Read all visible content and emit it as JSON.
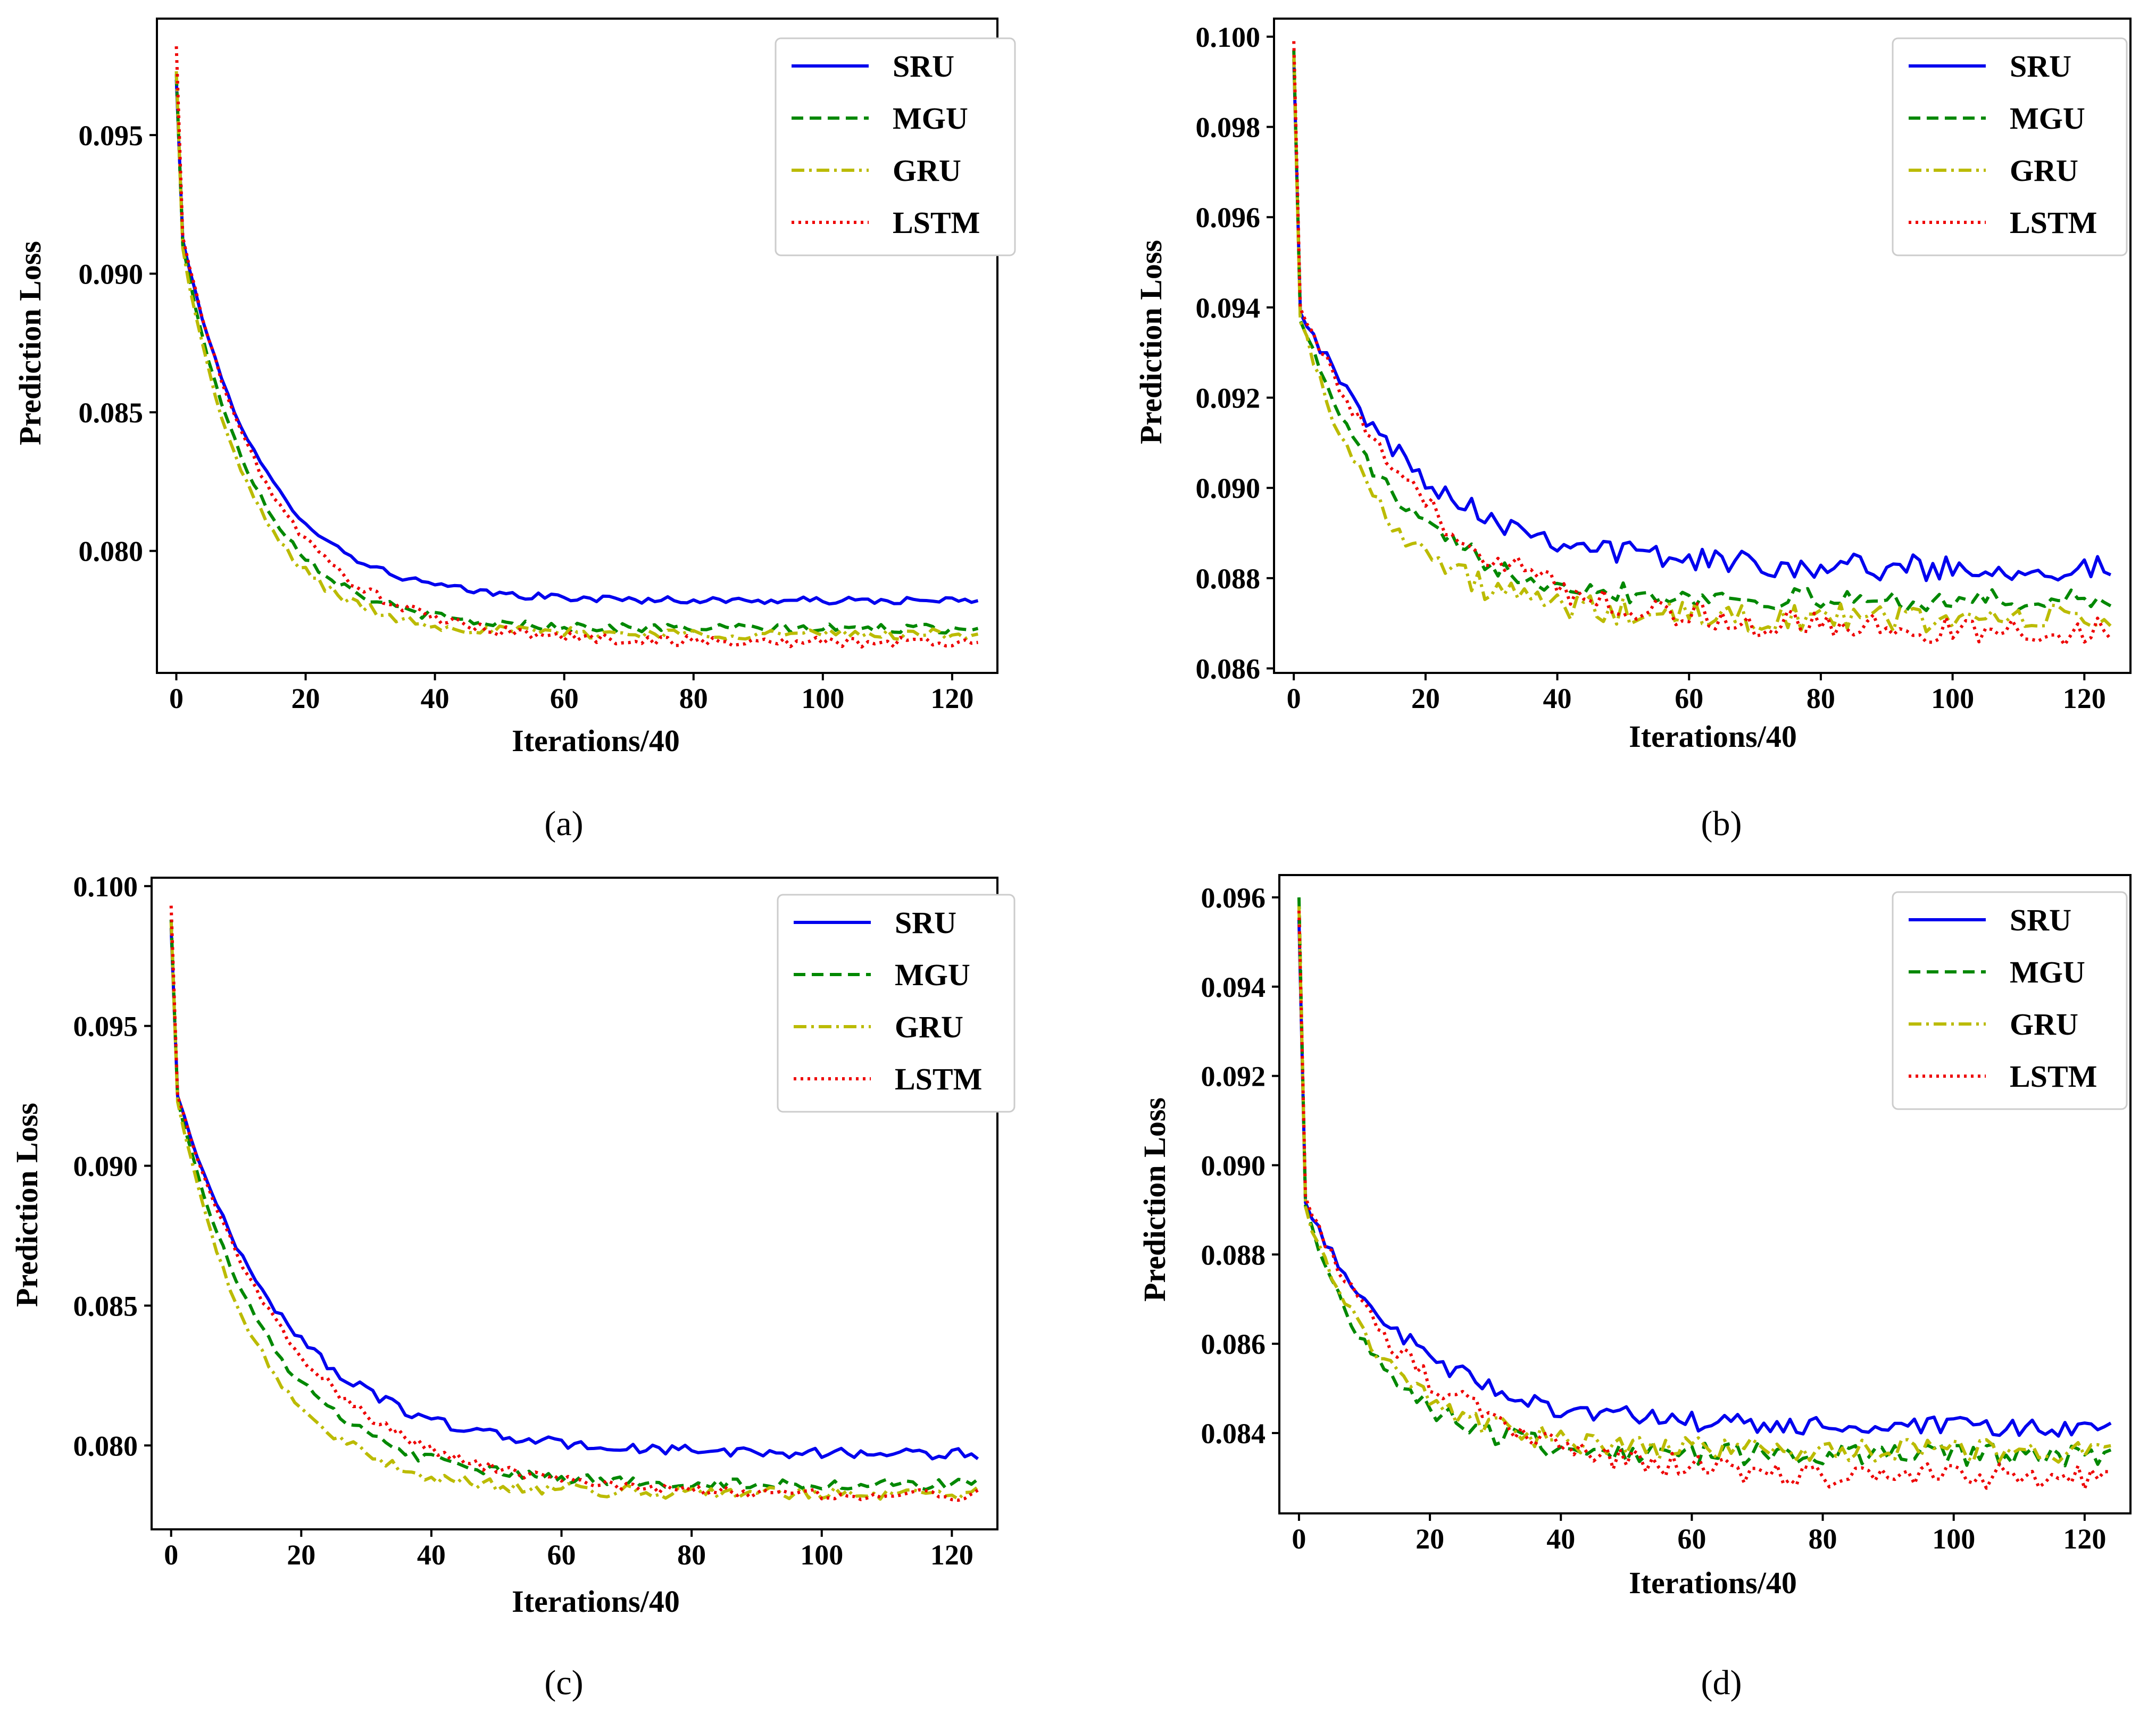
{
  "figure": {
    "series_styles": [
      {
        "name": "SRU",
        "color": "#0000ee",
        "dash": "solid"
      },
      {
        "name": "MGU",
        "color": "#008800",
        "dash": "dashed"
      },
      {
        "name": "GRU",
        "color": "#bbbb00",
        "dash": "dashdot"
      },
      {
        "name": "LSTM",
        "color": "#ee0000",
        "dash": "dotted"
      }
    ]
  },
  "chart_data": [
    {
      "id": "a",
      "caption": "(a)",
      "type": "line",
      "xlabel": "Iterations/40",
      "ylabel": "Prediction Loss",
      "xlim": [
        -3,
        127
      ],
      "ylim": [
        0.0756,
        0.0992
      ],
      "xticks": [
        0,
        20,
        40,
        60,
        80,
        100,
        120
      ],
      "xtick_labels": [
        "0",
        "20",
        "40",
        "60",
        "80",
        "100",
        "120"
      ],
      "yticks": [
        0.08,
        0.085,
        0.09,
        0.095
      ],
      "ytick_labels": [
        "0.080",
        "0.085",
        "0.090",
        "0.095"
      ],
      "legend": "top-right",
      "series": [
        {
          "name": "SRU",
          "start": 0.097,
          "knee": 0.0912,
          "end": 0.0782,
          "decay": 0.08,
          "noise": 8e-05
        },
        {
          "name": "MGU",
          "start": 0.0972,
          "knee": 0.091,
          "end": 0.0772,
          "decay": 0.088,
          "noise": 0.0001
        },
        {
          "name": "GRU",
          "start": 0.0973,
          "knee": 0.0909,
          "end": 0.077,
          "decay": 0.095,
          "noise": 0.00012
        },
        {
          "name": "LSTM",
          "start": 0.0982,
          "knee": 0.0913,
          "end": 0.0767,
          "decay": 0.072,
          "noise": 0.00012
        }
      ]
    },
    {
      "id": "b",
      "caption": "(b)",
      "type": "line",
      "xlabel": "Iterations/40",
      "ylabel": "Prediction Loss",
      "xlim": [
        -3,
        127
      ],
      "ylim": [
        0.0859,
        0.1004
      ],
      "xticks": [
        0,
        20,
        40,
        60,
        80,
        100,
        120
      ],
      "xtick_labels": [
        "0",
        "20",
        "40",
        "60",
        "80",
        "100",
        "120"
      ],
      "yticks": [
        0.086,
        0.088,
        0.09,
        0.092,
        0.094,
        0.096,
        0.098,
        0.1
      ],
      "ytick_labels": [
        "0.086",
        "0.088",
        "0.090",
        "0.092",
        "0.094",
        "0.096",
        "0.098",
        "0.100"
      ],
      "legend": "top-right",
      "series": [
        {
          "name": "SRU",
          "start": 0.0995,
          "knee": 0.094,
          "end": 0.0882,
          "decay": 0.055,
          "noise": 0.00018
        },
        {
          "name": "MGU",
          "start": 0.0997,
          "knee": 0.0938,
          "end": 0.0875,
          "decay": 0.07,
          "noise": 0.00015
        },
        {
          "name": "GRU",
          "start": 0.0996,
          "knee": 0.0938,
          "end": 0.0871,
          "decay": 0.08,
          "noise": 0.0002
        },
        {
          "name": "LSTM",
          "start": 0.0999,
          "knee": 0.0941,
          "end": 0.0868,
          "decay": 0.05,
          "noise": 0.0002
        }
      ]
    },
    {
      "id": "c",
      "caption": "(c)",
      "type": "line",
      "xlabel": "Iterations/40",
      "ylabel": "Prediction Loss",
      "xlim": [
        -3,
        127
      ],
      "ylim": [
        0.077,
        0.1003
      ],
      "xticks": [
        0,
        20,
        40,
        60,
        80,
        100,
        120
      ],
      "xtick_labels": [
        "0",
        "20",
        "40",
        "60",
        "80",
        "100",
        "120"
      ],
      "yticks": [
        0.08,
        0.085,
        0.09,
        0.095,
        0.1
      ],
      "ytick_labels": [
        "0.080",
        "0.085",
        "0.090",
        "0.095",
        "0.100"
      ],
      "legend": "top-right",
      "series": [
        {
          "name": "SRU",
          "start": 0.0985,
          "knee": 0.0925,
          "end": 0.0797,
          "decay": 0.06,
          "noise": 0.00012
        },
        {
          "name": "MGU",
          "start": 0.0988,
          "knee": 0.0924,
          "end": 0.0786,
          "decay": 0.07,
          "noise": 0.00012
        },
        {
          "name": "GRU",
          "start": 0.0987,
          "knee": 0.0923,
          "end": 0.0783,
          "decay": 0.08,
          "noise": 0.00014
        },
        {
          "name": "LSTM",
          "start": 0.0993,
          "knee": 0.0925,
          "end": 0.0782,
          "decay": 0.055,
          "noise": 0.00012
        }
      ]
    },
    {
      "id": "d",
      "caption": "(d)",
      "type": "line",
      "xlabel": "Iterations/40",
      "ylabel": "Prediction Loss",
      "xlim": [
        -3,
        127
      ],
      "ylim": [
        0.0822,
        0.0965
      ],
      "xticks": [
        0,
        20,
        40,
        60,
        80,
        100,
        120
      ],
      "xtick_labels": [
        "0",
        "20",
        "40",
        "60",
        "80",
        "100",
        "120"
      ],
      "yticks": [
        0.084,
        0.086,
        0.088,
        0.09,
        0.092,
        0.094,
        0.096
      ],
      "ytick_labels": [
        "0.084",
        "0.086",
        "0.088",
        "0.090",
        "0.092",
        "0.094",
        "0.096"
      ],
      "legend": "top-right",
      "series": [
        {
          "name": "SRU",
          "start": 0.0955,
          "knee": 0.0891,
          "end": 0.0841,
          "decay": 0.06,
          "noise": 0.00015
        },
        {
          "name": "MGU",
          "start": 0.096,
          "knee": 0.089,
          "end": 0.0835,
          "decay": 0.085,
          "noise": 0.00016
        },
        {
          "name": "GRU",
          "start": 0.0958,
          "knee": 0.089,
          "end": 0.0836,
          "decay": 0.08,
          "noise": 0.00016
        },
        {
          "name": "LSTM",
          "start": 0.0957,
          "knee": 0.0892,
          "end": 0.083,
          "decay": 0.055,
          "noise": 0.00018
        }
      ]
    }
  ]
}
